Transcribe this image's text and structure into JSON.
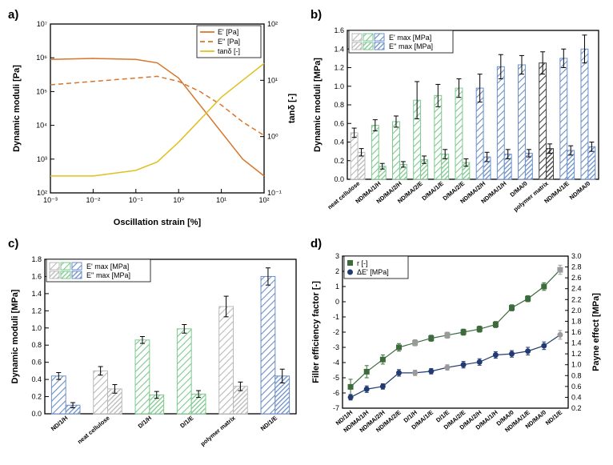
{
  "panelA": {
    "label": "a)",
    "type": "line-loglog",
    "x_axis_label": "Oscillation strain [%]",
    "y_left_label": "Dynamic moduli [Pa]",
    "y_right_label": "tanδ [-]",
    "x_range_log": [
      -3,
      2
    ],
    "y_left_range_log": [
      2,
      7
    ],
    "y_right_range_log": [
      -1,
      2
    ],
    "x_ticks": [
      "10⁻³",
      "10⁻²",
      "10⁻¹",
      "10⁰",
      "10¹",
      "10²"
    ],
    "y_left_ticks": [
      "10²",
      "10³",
      "10⁴",
      "10⁵",
      "10⁶",
      "10⁷"
    ],
    "y_right_ticks": [
      "10⁻¹",
      "10⁰",
      "10¹",
      "10²"
    ],
    "legend": [
      "E' [Pa]",
      "E'' [Pa]",
      "tanδ [-]"
    ],
    "series": {
      "Eprime": {
        "color": "#d9752b",
        "dash": "solid",
        "width": 1.5,
        "points": [
          [
            -3,
            5.95
          ],
          [
            -2,
            5.98
          ],
          [
            -1,
            5.95
          ],
          [
            -0.5,
            5.85
          ],
          [
            0,
            5.4
          ],
          [
            0.5,
            4.6
          ],
          [
            1,
            3.8
          ],
          [
            1.5,
            3.0
          ],
          [
            2,
            2.5
          ]
        ]
      },
      "Edbl": {
        "color": "#d9752b",
        "dash": "6,4",
        "width": 1.5,
        "points": [
          [
            -3,
            5.2
          ],
          [
            -2,
            5.3
          ],
          [
            -1,
            5.4
          ],
          [
            -0.5,
            5.45
          ],
          [
            0,
            5.3
          ],
          [
            0.5,
            5.0
          ],
          [
            1,
            4.6
          ],
          [
            1.5,
            4.1
          ],
          [
            2,
            3.7
          ]
        ]
      },
      "tand": {
        "color": "#e0c020",
        "dash": "solid",
        "width": 1.5,
        "points_r": [
          [
            -3,
            -0.7
          ],
          [
            -2,
            -0.7
          ],
          [
            -1,
            -0.6
          ],
          [
            -0.5,
            -0.45
          ],
          [
            0,
            -0.1
          ],
          [
            0.5,
            0.3
          ],
          [
            1,
            0.7
          ],
          [
            1.5,
            1.0
          ],
          [
            2,
            1.3
          ]
        ]
      }
    }
  },
  "panelB": {
    "label": "b)",
    "type": "bar",
    "y_label": "Dynamic moduli [MPa]",
    "y_range": [
      0.0,
      1.6
    ],
    "y_ticks": [
      0.0,
      0.2,
      0.4,
      0.6,
      0.8,
      1.0,
      1.2,
      1.4,
      1.6
    ],
    "legend": [
      "E' max [MPa]",
      "E'' max [MPa]"
    ],
    "categories": [
      "neat cellulose",
      "ND/MA/1/H",
      "ND/MA/2/H",
      "ND/MA/2/E",
      "D/MA/1/E",
      "D/MA/2/E",
      "ND/MA/2/H",
      "ND/MA/1/H",
      "D/MA/0",
      "polymer matrix",
      "ND/MA/1/E",
      "ND/MA/0"
    ],
    "bars": [
      {
        "g": "gray",
        "eprime": 0.5,
        "edbl": 0.29,
        "err1": 0.05,
        "err2": 0.04
      },
      {
        "g": "green",
        "eprime": 0.58,
        "edbl": 0.14,
        "err1": 0.06,
        "err2": 0.03
      },
      {
        "g": "green",
        "eprime": 0.62,
        "edbl": 0.16,
        "err1": 0.06,
        "err2": 0.03
      },
      {
        "g": "green",
        "eprime": 0.85,
        "edbl": 0.21,
        "err1": 0.2,
        "err2": 0.04
      },
      {
        "g": "green",
        "eprime": 0.9,
        "edbl": 0.27,
        "err1": 0.12,
        "err2": 0.05
      },
      {
        "g": "green",
        "eprime": 0.98,
        "edbl": 0.18,
        "err1": 0.1,
        "err2": 0.04
      },
      {
        "g": "blue",
        "eprime": 0.98,
        "edbl": 0.24,
        "err1": 0.15,
        "err2": 0.05
      },
      {
        "g": "blue",
        "eprime": 1.21,
        "edbl": 0.27,
        "err1": 0.13,
        "err2": 0.05
      },
      {
        "g": "blue",
        "eprime": 1.23,
        "edbl": 0.28,
        "err1": 0.1,
        "err2": 0.04
      },
      {
        "g": "black",
        "eprime": 1.25,
        "edbl": 0.33,
        "err1": 0.12,
        "err2": 0.05
      },
      {
        "g": "blue",
        "eprime": 1.3,
        "edbl": 0.31,
        "err1": 0.1,
        "err2": 0.05
      },
      {
        "g": "blue",
        "eprime": 1.4,
        "edbl": 0.35,
        "err1": 0.15,
        "err2": 0.05
      }
    ],
    "colors": {
      "gray": "#b9b9b9",
      "green": "#7ec88f",
      "blue": "#6b8fc9",
      "black": "#404040"
    }
  },
  "panelC": {
    "label": "c)",
    "type": "bar",
    "y_label": "Dynamic moduli [MPa]",
    "y_range": [
      0.0,
      1.8
    ],
    "y_ticks": [
      0.0,
      0.2,
      0.4,
      0.6,
      0.8,
      1.0,
      1.2,
      1.4,
      1.6,
      1.8
    ],
    "legend": [
      "E' max [MPa]",
      "E'' max [MPa]"
    ],
    "categories": [
      "ND/1/H",
      "neat cellulose",
      "D/1/H",
      "D/1/E",
      "polymer matrix",
      "ND/1/E"
    ],
    "bars": [
      {
        "g": "blue",
        "eprime": 0.44,
        "edbl": 0.1,
        "err1": 0.04,
        "err2": 0.03
      },
      {
        "g": "gray",
        "eprime": 0.5,
        "edbl": 0.29,
        "err1": 0.05,
        "err2": 0.05
      },
      {
        "g": "green",
        "eprime": 0.86,
        "edbl": 0.22,
        "err1": 0.04,
        "err2": 0.04
      },
      {
        "g": "green",
        "eprime": 0.99,
        "edbl": 0.23,
        "err1": 0.05,
        "err2": 0.04
      },
      {
        "g": "gray",
        "eprime": 1.25,
        "edbl": 0.32,
        "err1": 0.12,
        "err2": 0.05
      },
      {
        "g": "blue",
        "eprime": 1.6,
        "edbl": 0.44,
        "err1": 0.1,
        "err2": 0.08
      }
    ],
    "colors": {
      "gray": "#b9b9b9",
      "green": "#7ec88f",
      "blue": "#6b8fc9"
    }
  },
  "panelD": {
    "label": "d)",
    "type": "line-dualy",
    "x_categories": [
      "ND/1/H",
      "ND/MA/1/H",
      "ND/MA/2/H",
      "ND/MA/2/E",
      "D/1/H",
      "D/MA/1/E",
      "D/1/E",
      "D/MA/2/E",
      "D/MA/2/H",
      "D/MA/1/H",
      "D/MA/0",
      "ND/MA/1/E",
      "ND/MA/0",
      "ND/1/E"
    ],
    "y_left_label": "Filler efficiency factor [-]",
    "y_right_label": "Payne effect [MPa]",
    "y_left_range": [
      -7,
      3
    ],
    "y_right_range": [
      0.2,
      3.0
    ],
    "y_left_ticks": [
      -7,
      -6,
      -5,
      -4,
      -3,
      -2,
      -1,
      0,
      1,
      2,
      3
    ],
    "y_right_ticks": [
      0.2,
      0.4,
      0.6,
      0.8,
      1.0,
      1.2,
      1.4,
      1.6,
      1.8,
      2.0,
      2.2,
      2.4,
      2.6,
      2.8,
      3.0
    ],
    "legend": [
      "r [-]",
      "ΔE' [MPa]"
    ],
    "r": {
      "color": "#3c6b3c",
      "marker": "square",
      "values": [
        -5.6,
        -4.6,
        -3.8,
        -3.0,
        -2.7,
        -2.4,
        -2.2,
        -2.0,
        -1.8,
        -1.5,
        -0.4,
        0.2,
        1.0,
        2.1
      ],
      "err": [
        0.5,
        0.4,
        0.3,
        0.25,
        0.2,
        0.2,
        0.2,
        0.2,
        0.2,
        0.2,
        0.2,
        0.2,
        0.25,
        0.3
      ]
    },
    "dE": {
      "color": "#223b72",
      "marker": "circle",
      "values": [
        0.4,
        0.55,
        0.6,
        0.85,
        0.85,
        0.88,
        0.95,
        1.0,
        1.05,
        1.18,
        1.2,
        1.25,
        1.35,
        1.55
      ],
      "err": [
        0.05,
        0.06,
        0.05,
        0.06,
        0.05,
        0.05,
        0.05,
        0.06,
        0.06,
        0.06,
        0.06,
        0.07,
        0.07,
        0.08
      ]
    },
    "gray_points_idx": [
      4,
      6,
      13
    ]
  }
}
